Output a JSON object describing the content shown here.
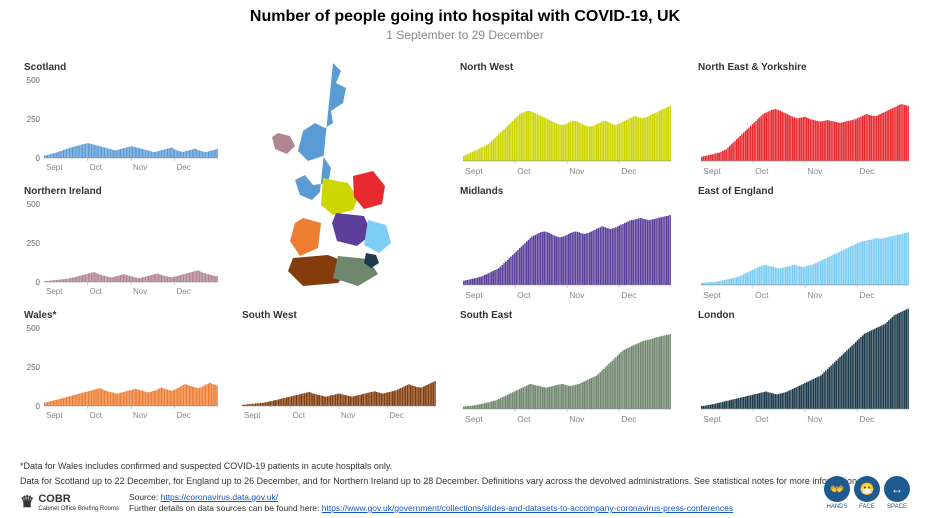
{
  "title": "Number of people going into hospital with COVID-19, UK",
  "subtitle": "1 September to 29 December",
  "yaxis": {
    "max": 500,
    "ticks": [
      0,
      250,
      500
    ]
  },
  "xaxis": {
    "labels": [
      "Sept",
      "Oct",
      "Nov",
      "Dec"
    ]
  },
  "footnote1": "*Data for Wales includes confirmed and suspected COVID-19 patients in acute hospitals only.",
  "footnote2": "Data for Scotland up to 22 December, for England up to 26 December, and for Northern Ireland up to 28 December. Definitions vary across the devolved administrations. See statistical notes for more information.",
  "source_label": "Source:",
  "source_url_text": "https://coronavirus.data.gov.uk/",
  "further_label": "Further details on data sources can be found here:",
  "further_url_text": "https://www.gov.uk/government/collections/slides-and-datasets-to-accompany-coronavirus-press-conferences",
  "logo_text": "COBR",
  "logo_sub": "Cabinet Office Briefing Rooms",
  "badges": [
    {
      "icon": "👐",
      "label": "HANDS"
    },
    {
      "icon": "😷",
      "label": "FACE"
    },
    {
      "icon": "↔",
      "label": "SPACE"
    }
  ],
  "regions": [
    {
      "name": "Scotland",
      "color": "#5b9bd5",
      "row": 0,
      "col": 0,
      "values": [
        15,
        18,
        20,
        22,
        25,
        28,
        30,
        32,
        35,
        38,
        42,
        45,
        48,
        52,
        55,
        58,
        62,
        65,
        68,
        70,
        72,
        75,
        78,
        80,
        82,
        85,
        88,
        90,
        92,
        95,
        95,
        92,
        90,
        88,
        85,
        82,
        80,
        78,
        75,
        72,
        70,
        68,
        65,
        62,
        60,
        58,
        55,
        52,
        50,
        50,
        52,
        55,
        58,
        60,
        62,
        65,
        68,
        70,
        72,
        75,
        75,
        72,
        70,
        68,
        65,
        62,
        60,
        58,
        55,
        52,
        50,
        48,
        45,
        42,
        40,
        38,
        40,
        42,
        45,
        48,
        50,
        52,
        55,
        58,
        60,
        62,
        65,
        68,
        60,
        55,
        50,
        48,
        45,
        42,
        40,
        40,
        42,
        45,
        48,
        50,
        52,
        55,
        58,
        60,
        55,
        50,
        48,
        45,
        42,
        40,
        38,
        40,
        42,
        45,
        48,
        50,
        52,
        55,
        60
      ]
    },
    {
      "name": "Northern Ireland",
      "color": "#b08590",
      "row": 1,
      "col": 0,
      "values": [
        5,
        6,
        7,
        8,
        9,
        10,
        11,
        12,
        13,
        14,
        15,
        16,
        17,
        18,
        19,
        20,
        22,
        24,
        26,
        28,
        30,
        32,
        35,
        38,
        40,
        42,
        45,
        48,
        50,
        52,
        55,
        58,
        60,
        62,
        65,
        60,
        55,
        50,
        48,
        45,
        42,
        40,
        38,
        35,
        32,
        30,
        30,
        32,
        35,
        38,
        40,
        42,
        45,
        48,
        50,
        48,
        45,
        42,
        40,
        38,
        35,
        32,
        30,
        28,
        25,
        25,
        28,
        30,
        32,
        35,
        38,
        40,
        42,
        45,
        48,
        50,
        52,
        55,
        50,
        48,
        45,
        42,
        40,
        38,
        35,
        32,
        30,
        30,
        32,
        35,
        38,
        40,
        42,
        45,
        48,
        50,
        52,
        55,
        58,
        60,
        62,
        65,
        68,
        70,
        72,
        75,
        70,
        65,
        60,
        58,
        55,
        52,
        50,
        48,
        45,
        42,
        40,
        38,
        40
      ]
    },
    {
      "name": "Wales*",
      "color": "#ed7d31",
      "row": 2,
      "col": 0,
      "values": [
        20,
        22,
        25,
        28,
        30,
        32,
        35,
        38,
        40,
        42,
        45,
        48,
        50,
        52,
        55,
        58,
        60,
        62,
        65,
        68,
        70,
        72,
        75,
        78,
        80,
        82,
        85,
        88,
        90,
        92,
        95,
        98,
        100,
        102,
        105,
        108,
        110,
        112,
        115,
        110,
        105,
        100,
        98,
        95,
        92,
        90,
        88,
        85,
        82,
        80,
        80,
        82,
        85,
        88,
        90,
        92,
        95,
        98,
        100,
        102,
        105,
        108,
        110,
        108,
        105,
        102,
        100,
        98,
        95,
        92,
        90,
        88,
        90,
        92,
        95,
        98,
        100,
        105,
        110,
        115,
        120,
        115,
        110,
        108,
        105,
        102,
        100,
        98,
        100,
        105,
        110,
        115,
        120,
        125,
        130,
        135,
        140,
        138,
        135,
        130,
        128,
        125,
        122,
        120,
        118,
        115,
        118,
        120,
        125,
        130,
        135,
        140,
        145,
        150,
        145,
        140,
        138,
        135,
        130
      ]
    },
    {
      "name": "South West",
      "color": "#843c0c",
      "row": 2,
      "col": 1,
      "values": [
        8,
        9,
        10,
        11,
        12,
        13,
        14,
        15,
        16,
        17,
        18,
        19,
        20,
        22,
        24,
        26,
        28,
        30,
        32,
        35,
        38,
        40,
        42,
        45,
        48,
        50,
        52,
        55,
        58,
        60,
        62,
        65,
        68,
        70,
        72,
        75,
        78,
        80,
        82,
        85,
        88,
        90,
        85,
        80,
        78,
        75,
        72,
        70,
        68,
        65,
        62,
        60,
        62,
        65,
        68,
        70,
        72,
        75,
        78,
        80,
        78,
        75,
        72,
        70,
        68,
        65,
        62,
        60,
        62,
        65,
        68,
        70,
        72,
        75,
        78,
        80,
        82,
        85,
        88,
        90,
        92,
        95,
        90,
        88,
        85,
        82,
        80,
        82,
        85,
        88,
        90,
        92,
        95,
        98,
        100,
        105,
        110,
        115,
        120,
        125,
        130,
        135,
        140,
        135,
        130,
        128,
        125,
        122,
        120,
        118,
        120,
        125,
        130,
        135,
        140,
        145,
        150,
        155,
        160
      ]
    },
    {
      "name": "North West",
      "color": "#cdd600",
      "row": 0,
      "col": 2,
      "values": [
        30,
        35,
        40,
        45,
        50,
        55,
        60,
        65,
        70,
        75,
        80,
        85,
        90,
        95,
        100,
        110,
        120,
        130,
        140,
        150,
        160,
        170,
        180,
        190,
        200,
        210,
        220,
        230,
        240,
        250,
        260,
        270,
        280,
        285,
        290,
        295,
        298,
        300,
        298,
        295,
        290,
        285,
        280,
        275,
        270,
        265,
        260,
        255,
        250,
        245,
        240,
        235,
        230,
        225,
        220,
        218,
        215,
        218,
        220,
        225,
        230,
        235,
        238,
        240,
        238,
        235,
        230,
        225,
        220,
        215,
        210,
        208,
        205,
        208,
        210,
        215,
        220,
        225,
        230,
        235,
        238,
        240,
        235,
        230,
        225,
        220,
        215,
        218,
        220,
        225,
        230,
        235,
        240,
        245,
        250,
        255,
        260,
        265,
        270,
        265,
        260,
        258,
        255,
        258,
        260,
        265,
        270,
        275,
        280,
        285,
        290,
        295,
        300,
        305,
        310,
        315,
        320,
        325,
        330
      ]
    },
    {
      "name": "Midlands",
      "color": "#5b3e99",
      "row": 1,
      "col": 2,
      "values": [
        25,
        28,
        30,
        32,
        35,
        38,
        40,
        42,
        45,
        48,
        50,
        55,
        60,
        65,
        70,
        75,
        80,
        85,
        90,
        95,
        100,
        110,
        120,
        130,
        140,
        150,
        160,
        170,
        180,
        190,
        200,
        210,
        220,
        230,
        240,
        250,
        260,
        270,
        280,
        290,
        295,
        300,
        305,
        310,
        315,
        318,
        320,
        318,
        315,
        310,
        305,
        300,
        295,
        290,
        288,
        285,
        288,
        290,
        295,
        300,
        305,
        310,
        315,
        318,
        320,
        318,
        315,
        310,
        308,
        305,
        308,
        310,
        315,
        320,
        325,
        330,
        335,
        340,
        345,
        350,
        348,
        345,
        340,
        338,
        335,
        338,
        340,
        345,
        350,
        355,
        360,
        365,
        370,
        375,
        380,
        385,
        388,
        390,
        392,
        395,
        398,
        400,
        398,
        395,
        392,
        390,
        388,
        390,
        392,
        395,
        398,
        400,
        402,
        405,
        408,
        410,
        412,
        415,
        418
      ]
    },
    {
      "name": "South East",
      "color": "#70866e",
      "row": 2,
      "col": 2,
      "values": [
        15,
        16,
        17,
        18,
        19,
        20,
        22,
        24,
        26,
        28,
        30,
        32,
        35,
        38,
        40,
        42,
        45,
        48,
        50,
        55,
        60,
        65,
        70,
        75,
        80,
        85,
        90,
        95,
        100,
        105,
        110,
        115,
        120,
        125,
        130,
        135,
        140,
        145,
        150,
        148,
        145,
        142,
        140,
        138,
        135,
        132,
        130,
        128,
        130,
        132,
        135,
        138,
        140,
        142,
        145,
        148,
        150,
        148,
        145,
        142,
        140,
        138,
        140,
        142,
        145,
        148,
        150,
        155,
        160,
        165,
        170,
        175,
        180,
        185,
        190,
        195,
        200,
        210,
        220,
        230,
        240,
        250,
        260,
        270,
        280,
        290,
        300,
        310,
        320,
        330,
        340,
        350,
        355,
        360,
        365,
        370,
        375,
        380,
        385,
        390,
        395,
        400,
        405,
        408,
        410,
        412,
        415,
        418,
        420,
        425,
        428,
        430,
        432,
        435,
        438,
        440,
        442,
        445,
        448
      ]
    },
    {
      "name": "North East & Yorkshire",
      "color": "#e8292e",
      "row": 0,
      "col": 3,
      "values": [
        25,
        28,
        30,
        32,
        35,
        38,
        40,
        42,
        45,
        48,
        50,
        55,
        60,
        65,
        70,
        80,
        90,
        100,
        110,
        120,
        130,
        140,
        150,
        160,
        170,
        180,
        190,
        200,
        210,
        220,
        230,
        240,
        250,
        260,
        270,
        280,
        285,
        290,
        295,
        300,
        305,
        308,
        310,
        308,
        305,
        300,
        295,
        290,
        285,
        280,
        275,
        270,
        265,
        260,
        258,
        255,
        258,
        260,
        262,
        265,
        260,
        255,
        250,
        248,
        245,
        242,
        240,
        238,
        235,
        238,
        240,
        242,
        245,
        242,
        240,
        238,
        235,
        232,
        230,
        228,
        230,
        232,
        235,
        238,
        240,
        242,
        245,
        248,
        250,
        255,
        260,
        265,
        270,
        275,
        280,
        278,
        275,
        272,
        270,
        268,
        270,
        275,
        280,
        285,
        290,
        295,
        300,
        305,
        310,
        315,
        320,
        325,
        330,
        335,
        340,
        338,
        335,
        332,
        330
      ]
    },
    {
      "name": "East of England",
      "color": "#7dcef4",
      "row": 1,
      "col": 3,
      "values": [
        12,
        13,
        14,
        15,
        16,
        17,
        18,
        19,
        20,
        22,
        24,
        26,
        28,
        30,
        32,
        35,
        38,
        40,
        42,
        45,
        48,
        50,
        55,
        60,
        65,
        70,
        75,
        80,
        85,
        90,
        95,
        100,
        105,
        110,
        115,
        118,
        120,
        118,
        115,
        112,
        110,
        108,
        105,
        102,
        100,
        100,
        102,
        105,
        108,
        110,
        112,
        115,
        118,
        120,
        118,
        115,
        112,
        110,
        108,
        110,
        112,
        115,
        118,
        120,
        125,
        130,
        135,
        140,
        145,
        150,
        155,
        160,
        165,
        170,
        175,
        180,
        185,
        190,
        195,
        200,
        205,
        210,
        215,
        220,
        225,
        230,
        235,
        240,
        245,
        250,
        255,
        258,
        260,
        262,
        265,
        268,
        270,
        272,
        275,
        278,
        280,
        278,
        275,
        278,
        280,
        282,
        285,
        288,
        290,
        292,
        295,
        298,
        300,
        302,
        305,
        308,
        310,
        312,
        315
      ]
    },
    {
      "name": "London",
      "color": "#1c3a4a",
      "row": 2,
      "col": 3,
      "values": [
        18,
        19,
        20,
        22,
        24,
        26,
        28,
        30,
        32,
        35,
        38,
        40,
        42,
        45,
        48,
        50,
        52,
        55,
        58,
        60,
        62,
        65,
        68,
        70,
        72,
        75,
        78,
        80,
        82,
        85,
        88,
        90,
        92,
        95,
        98,
        100,
        102,
        105,
        100,
        98,
        95,
        92,
        90,
        88,
        90,
        92,
        95,
        98,
        100,
        105,
        110,
        115,
        120,
        125,
        130,
        135,
        140,
        145,
        150,
        155,
        160,
        165,
        170,
        175,
        180,
        185,
        190,
        195,
        200,
        210,
        220,
        230,
        240,
        250,
        260,
        270,
        280,
        290,
        300,
        310,
        320,
        330,
        340,
        350,
        360,
        370,
        380,
        390,
        400,
        410,
        420,
        430,
        440,
        450,
        455,
        460,
        465,
        470,
        475,
        480,
        485,
        490,
        495,
        500,
        505,
        510,
        520,
        530,
        540,
        550,
        560,
        565,
        570,
        575,
        580,
        585,
        590,
        595,
        600
      ]
    }
  ],
  "map": {
    "note": "schematic UK map with regions coloured"
  }
}
